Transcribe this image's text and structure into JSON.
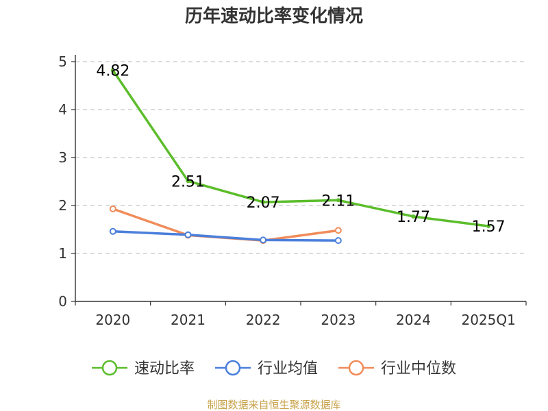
{
  "chart_data": {
    "type": "line",
    "title": "历年速动比率变化情况",
    "categories": [
      "2020",
      "2021",
      "2022",
      "2023",
      "2024",
      "2025Q1"
    ],
    "ylim": [
      0,
      5
    ],
    "yticks": [
      0,
      1,
      2,
      3,
      4,
      5
    ],
    "grid": true,
    "legend_position": "bottom",
    "series": [
      {
        "name": "速动比率",
        "color": "#5bbd2b",
        "values": [
          4.82,
          2.51,
          2.07,
          2.11,
          1.77,
          1.57
        ],
        "show_labels": true
      },
      {
        "name": "行业均值",
        "color": "#4a7fdc",
        "values": [
          1.46,
          1.39,
          1.28,
          1.27,
          null,
          null
        ],
        "show_labels": false
      },
      {
        "name": "行业中位数",
        "color": "#f08c5a",
        "values": [
          1.93,
          1.38,
          1.27,
          1.48,
          null,
          null
        ],
        "show_labels": false
      }
    ],
    "source": "制图数据来自恒生聚源数据库"
  }
}
